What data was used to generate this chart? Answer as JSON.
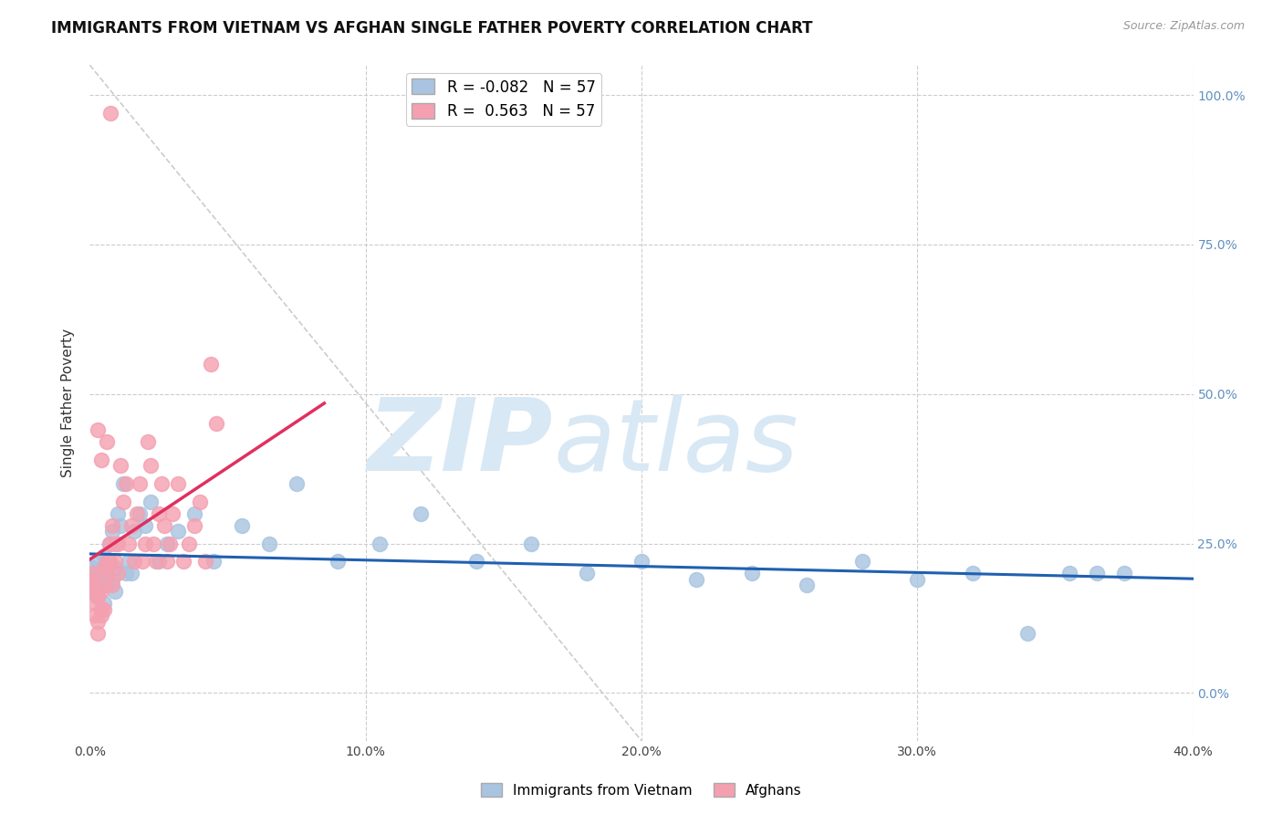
{
  "title": "IMMIGRANTS FROM VIETNAM VS AFGHAN SINGLE FATHER POVERTY CORRELATION CHART",
  "source": "Source: ZipAtlas.com",
  "ylabel": "Single Father Poverty",
  "legend_blue_label": "Immigrants from Vietnam",
  "legend_pink_label": "Afghans",
  "r_blue": -0.082,
  "r_pink": 0.563,
  "n_blue": 57,
  "n_pink": 57,
  "blue_color": "#a8c4e0",
  "pink_color": "#f4a0b0",
  "blue_line_color": "#2060b0",
  "pink_line_color": "#e03060",
  "watermark_zip": "ZIP",
  "watermark_atlas": "atlas",
  "watermark_color": "#d8e8f4",
  "background_color": "#ffffff",
  "grid_color": "#cccccc",
  "right_axis_color": "#6090c0",
  "xlim": [
    0,
    0.4
  ],
  "ylim": [
    -0.08,
    1.05
  ],
  "blue_x": [
    0.0008,
    0.001,
    0.0015,
    0.002,
    0.002,
    0.003,
    0.003,
    0.003,
    0.004,
    0.004,
    0.005,
    0.005,
    0.005,
    0.006,
    0.006,
    0.007,
    0.007,
    0.008,
    0.008,
    0.009,
    0.01,
    0.011,
    0.012,
    0.013,
    0.014,
    0.016,
    0.018,
    0.02,
    0.022,
    0.025,
    0.028,
    0.032,
    0.038,
    0.045,
    0.055,
    0.065,
    0.075,
    0.09,
    0.105,
    0.12,
    0.14,
    0.16,
    0.18,
    0.2,
    0.22,
    0.24,
    0.26,
    0.28,
    0.3,
    0.32,
    0.34,
    0.355,
    0.365,
    0.375,
    0.005,
    0.009,
    0.015
  ],
  "blue_y": [
    0.19,
    0.21,
    0.18,
    0.2,
    0.17,
    0.22,
    0.19,
    0.16,
    0.2,
    0.18,
    0.21,
    0.19,
    0.23,
    0.18,
    0.2,
    0.25,
    0.22,
    0.27,
    0.19,
    0.21,
    0.3,
    0.28,
    0.35,
    0.2,
    0.22,
    0.27,
    0.3,
    0.28,
    0.32,
    0.22,
    0.25,
    0.27,
    0.3,
    0.22,
    0.28,
    0.25,
    0.35,
    0.22,
    0.25,
    0.3,
    0.22,
    0.25,
    0.2,
    0.22,
    0.19,
    0.2,
    0.18,
    0.22,
    0.19,
    0.2,
    0.1,
    0.2,
    0.2,
    0.2,
    0.15,
    0.17,
    0.2
  ],
  "pink_x": [
    0.0008,
    0.001,
    0.001,
    0.0015,
    0.002,
    0.002,
    0.003,
    0.003,
    0.003,
    0.004,
    0.004,
    0.004,
    0.005,
    0.005,
    0.005,
    0.006,
    0.006,
    0.007,
    0.007,
    0.008,
    0.008,
    0.009,
    0.009,
    0.01,
    0.01,
    0.011,
    0.012,
    0.013,
    0.014,
    0.015,
    0.016,
    0.017,
    0.018,
    0.019,
    0.02,
    0.021,
    0.022,
    0.023,
    0.024,
    0.025,
    0.026,
    0.027,
    0.028,
    0.029,
    0.03,
    0.032,
    0.034,
    0.036,
    0.038,
    0.04,
    0.042,
    0.044,
    0.046,
    0.003,
    0.004,
    0.006,
    0.0075
  ],
  "pink_y": [
    0.19,
    0.18,
    0.2,
    0.17,
    0.15,
    0.13,
    0.12,
    0.16,
    0.1,
    0.14,
    0.13,
    0.17,
    0.21,
    0.18,
    0.14,
    0.2,
    0.22,
    0.25,
    0.22,
    0.18,
    0.28,
    0.22,
    0.25,
    0.2,
    0.25,
    0.38,
    0.32,
    0.35,
    0.25,
    0.28,
    0.22,
    0.3,
    0.35,
    0.22,
    0.25,
    0.42,
    0.38,
    0.25,
    0.22,
    0.3,
    0.35,
    0.28,
    0.22,
    0.25,
    0.3,
    0.35,
    0.22,
    0.25,
    0.28,
    0.32,
    0.22,
    0.55,
    0.45,
    0.44,
    0.39,
    0.42,
    0.97
  ]
}
